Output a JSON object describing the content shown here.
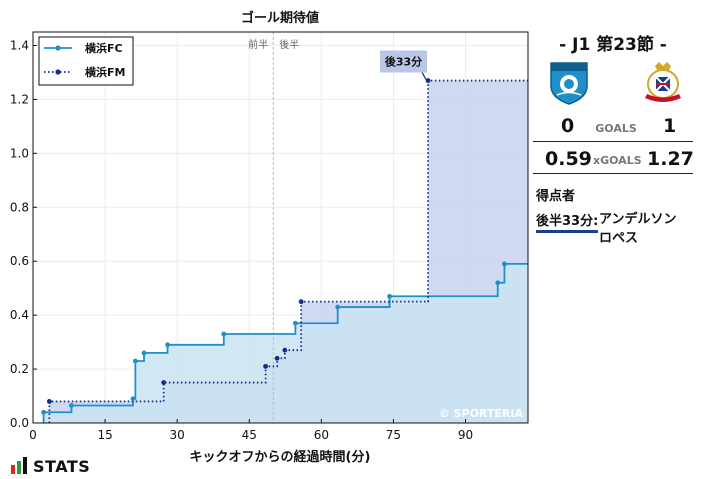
{
  "chart_data": {
    "type": "line",
    "title": "ゴール期待値",
    "xlabel": "キックオフからの経過時間(分)",
    "ylabel": "",
    "xlim": [
      0,
      103
    ],
    "ylim": [
      0,
      1.45
    ],
    "x_ticks": [
      0,
      15,
      30,
      45,
      60,
      75,
      90
    ],
    "y_ticks": [
      0.0,
      0.2,
      0.4,
      0.6,
      0.8,
      1.0,
      1.2,
      1.4
    ],
    "grid": true,
    "legend_position": "top-left",
    "half_divider": {
      "x": 50,
      "first_half_label": "前半",
      "second_half_label": "後半"
    },
    "watermark": "© SPORTERIA",
    "series": [
      {
        "name": "横浜FC",
        "style": "solid-step",
        "color": "#1e8fc9",
        "fill": "#c9e3f2",
        "points": [
          [
            2.2,
            0.04
          ],
          [
            8,
            0.065
          ],
          [
            20.8,
            0.09
          ],
          [
            21.3,
            0.23
          ],
          [
            23.1,
            0.26
          ],
          [
            28,
            0.29
          ],
          [
            39.7,
            0.33
          ],
          [
            54.6,
            0.37
          ],
          [
            63.4,
            0.43
          ],
          [
            74.2,
            0.47
          ],
          [
            96.7,
            0.52
          ],
          [
            98.1,
            0.59
          ],
          [
            103,
            0.59
          ]
        ]
      },
      {
        "name": "横浜FM",
        "style": "dotted-step",
        "color": "#0d2d8f",
        "fill": "#c8d2ee",
        "points": [
          [
            3.4,
            0.08
          ],
          [
            27.2,
            0.15
          ],
          [
            48.4,
            0.21
          ],
          [
            50.8,
            0.24
          ],
          [
            52.4,
            0.27
          ],
          [
            55.8,
            0.45
          ],
          [
            82.2,
            1.27
          ],
          [
            103,
            1.27
          ]
        ]
      }
    ],
    "annotations": [
      {
        "label": "後33分",
        "x": 82.2,
        "y": 1.27
      }
    ]
  },
  "colors": {
    "home": "#1e8fc9",
    "away": "#0d2d8f",
    "scorer_underline": "#1a3f8f"
  },
  "match": {
    "title": "- J1 第23節 -",
    "home_crest_icon": "yokohama-fc-crest-icon",
    "away_crest_icon": "yokohama-f-marinos-crest-icon",
    "goals": {
      "home": "0",
      "label": "GOALS",
      "away": "1"
    },
    "xgoals": {
      "home": "0.59",
      "label": "xGOALS",
      "away": "1.27"
    },
    "scorers_heading": "得点者",
    "scorers": [
      {
        "time": "後半33分:",
        "name": "アンデルソン ロペス"
      }
    ]
  },
  "brand": {
    "text": "STATS",
    "icon": "stats-bar-logo-icon"
  }
}
